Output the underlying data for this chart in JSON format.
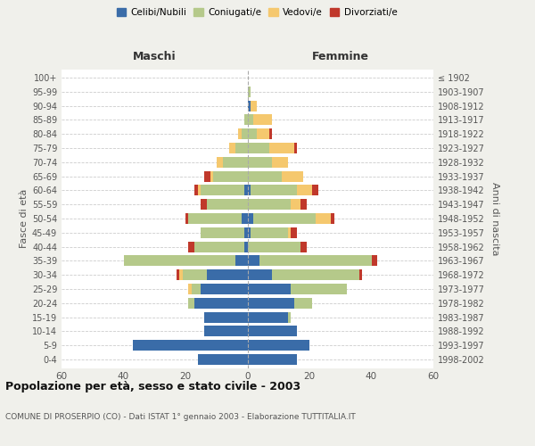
{
  "age_groups": [
    "0-4",
    "5-9",
    "10-14",
    "15-19",
    "20-24",
    "25-29",
    "30-34",
    "35-39",
    "40-44",
    "45-49",
    "50-54",
    "55-59",
    "60-64",
    "65-69",
    "70-74",
    "75-79",
    "80-84",
    "85-89",
    "90-94",
    "95-99",
    "100+"
  ],
  "birth_years": [
    "1998-2002",
    "1993-1997",
    "1988-1992",
    "1983-1987",
    "1978-1982",
    "1973-1977",
    "1968-1972",
    "1963-1967",
    "1958-1962",
    "1953-1957",
    "1948-1952",
    "1943-1947",
    "1938-1942",
    "1933-1937",
    "1928-1932",
    "1923-1927",
    "1918-1922",
    "1913-1917",
    "1908-1912",
    "1903-1907",
    "≤ 1902"
  ],
  "maschi": {
    "celibi": [
      16,
      37,
      14,
      14,
      17,
      15,
      13,
      4,
      1,
      1,
      2,
      0,
      1,
      0,
      0,
      0,
      0,
      0,
      0,
      0,
      0
    ],
    "coniugati": [
      0,
      0,
      0,
      0,
      2,
      3,
      8,
      36,
      16,
      14,
      17,
      13,
      14,
      11,
      8,
      4,
      2,
      1,
      0,
      0,
      0
    ],
    "vedovi": [
      0,
      0,
      0,
      0,
      0,
      1,
      1,
      0,
      0,
      0,
      0,
      0,
      1,
      1,
      2,
      2,
      1,
      0,
      0,
      0,
      0
    ],
    "divorziati": [
      0,
      0,
      0,
      0,
      0,
      0,
      1,
      0,
      2,
      0,
      1,
      2,
      1,
      2,
      0,
      0,
      0,
      0,
      0,
      0,
      0
    ]
  },
  "femmine": {
    "nubili": [
      16,
      20,
      16,
      13,
      15,
      14,
      8,
      4,
      0,
      1,
      2,
      0,
      1,
      0,
      0,
      0,
      0,
      0,
      1,
      0,
      0
    ],
    "coniugate": [
      0,
      0,
      0,
      1,
      6,
      18,
      28,
      36,
      17,
      12,
      20,
      14,
      15,
      11,
      8,
      7,
      3,
      2,
      0,
      1,
      0
    ],
    "vedove": [
      0,
      0,
      0,
      0,
      0,
      0,
      0,
      0,
      0,
      1,
      5,
      3,
      5,
      7,
      5,
      8,
      4,
      6,
      2,
      0,
      0
    ],
    "divorziate": [
      0,
      0,
      0,
      0,
      0,
      0,
      1,
      2,
      2,
      2,
      1,
      2,
      2,
      0,
      0,
      1,
      1,
      0,
      0,
      0,
      0
    ]
  },
  "colors": {
    "celibi_nubili": "#3a6ca8",
    "coniugati": "#b5c98a",
    "vedovi": "#f5c86e",
    "divorziati": "#c0382b"
  },
  "xlim": 60,
  "title": "Popolazione per età, sesso e stato civile - 2003",
  "subtitle": "COMUNE DI PROSERPIO (CO) - Dati ISTAT 1° gennaio 2003 - Elaborazione TUTTITALIA.IT",
  "ylabel_left": "Fasce di età",
  "ylabel_right": "Anni di nascita",
  "xlabel_maschi": "Maschi",
  "xlabel_femmine": "Femmine",
  "legend_labels": [
    "Celibi/Nubili",
    "Coniugati/e",
    "Vedovi/e",
    "Divorziati/e"
  ],
  "bg_color": "#f0f0eb",
  "plot_bg_color": "#ffffff"
}
